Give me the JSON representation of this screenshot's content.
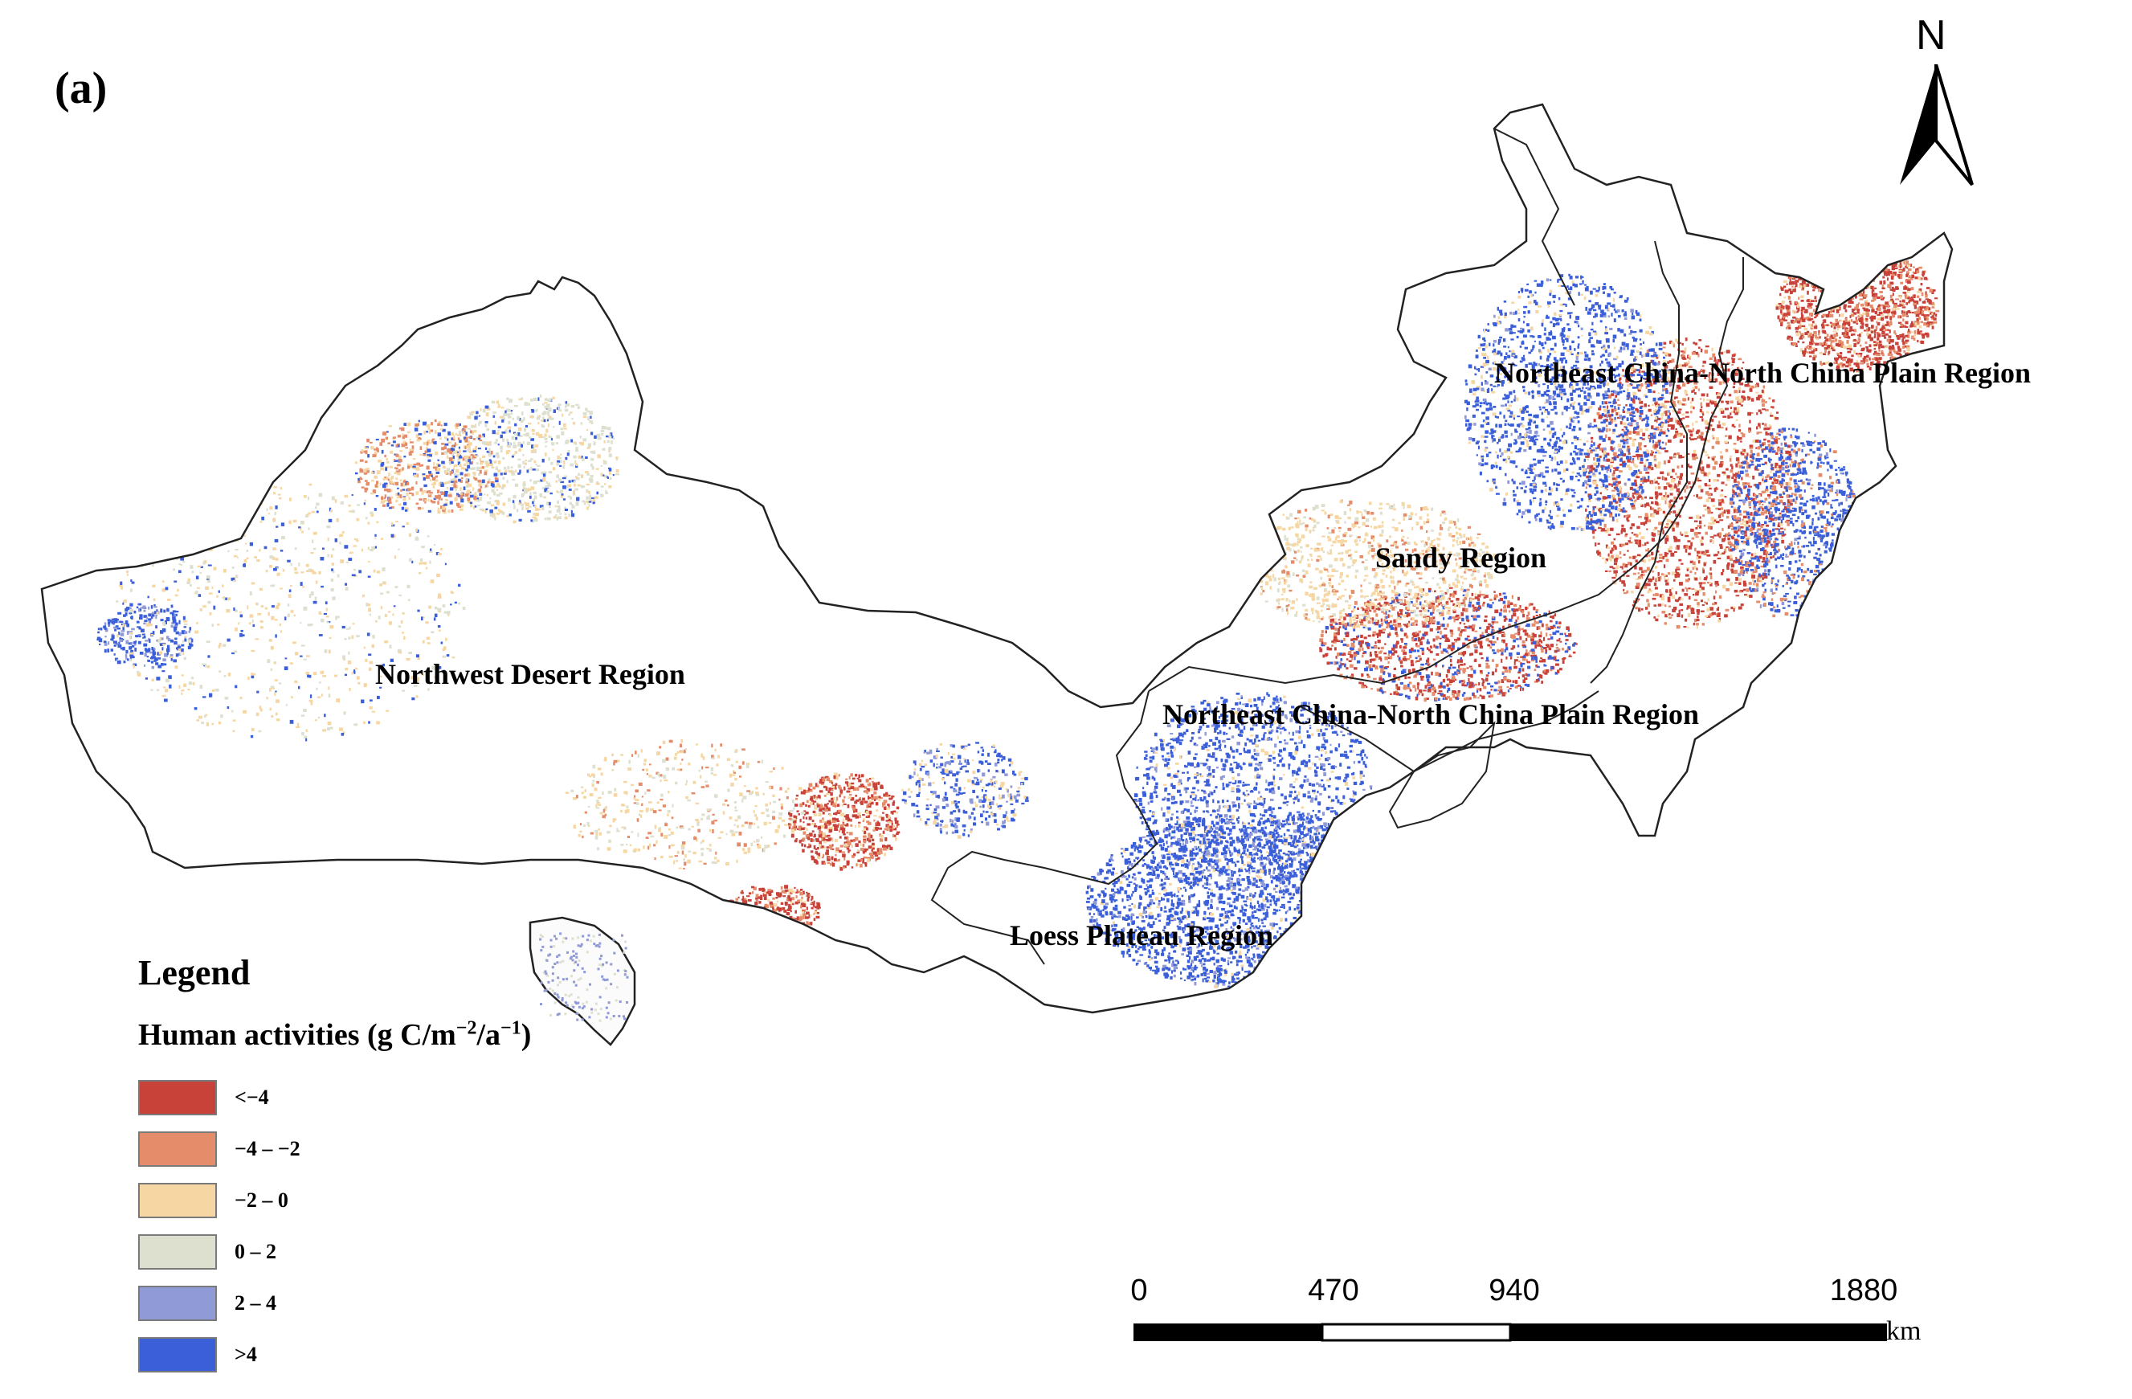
{
  "panel_label": "(a)",
  "north_label": "N",
  "regions": {
    "northwest_desert": "Northwest Desert Region",
    "northeast_upper": "Northeast China-North China Plain Region",
    "sandy": "Sandy Region",
    "northeast_lower": "Northeast China-North China Plain Region",
    "loess": "Loess Plateau Region"
  },
  "legend": {
    "title": "Legend",
    "subtitle_prefix": "Human activities (g C/m",
    "subtitle_sup1": "−2",
    "subtitle_mid": "/a",
    "subtitle_sup2": "−1",
    "subtitle_suffix": ")",
    "classes": [
      {
        "label": "<−4",
        "color": "#c8423a"
      },
      {
        "label": "−4 – −2",
        "color": "#e58c6a"
      },
      {
        "label": "−2 – 0",
        "color": "#f6d7a3"
      },
      {
        "label": "0 – 2",
        "color": "#dde0cf"
      },
      {
        "label": "2 – 4",
        "color": "#8f9ad6"
      },
      {
        "label": ">4",
        "color": "#3b5fd9"
      }
    ]
  },
  "scale_bar": {
    "ticks": [
      "0",
      "470",
      "940",
      "1880"
    ],
    "unit": "km"
  },
  "colors": {
    "boundary": "#222222",
    "neg_strong": "#c8423a",
    "neg_mid": "#e58c6a",
    "neg_weak": "#f6d7a3",
    "pos_weak": "#dde0cf",
    "pos_mid": "#8f9ad6",
    "pos_strong": "#3b5fd9"
  }
}
